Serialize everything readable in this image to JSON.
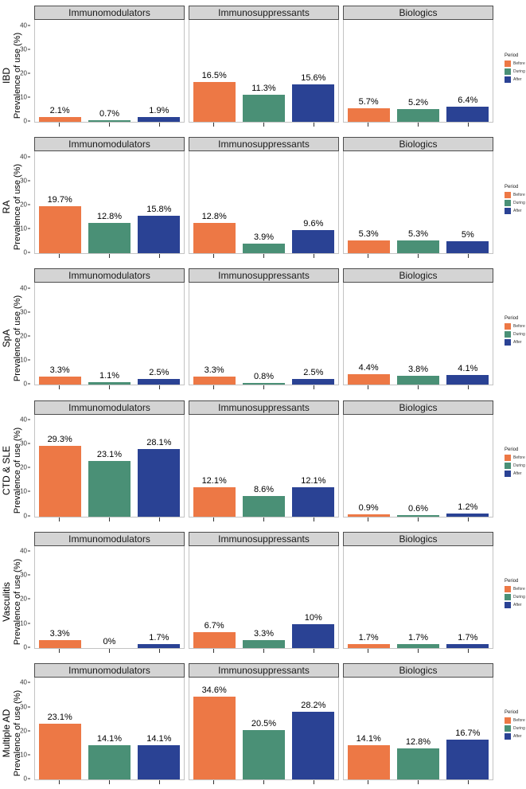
{
  "chart_data": {
    "type": "bar",
    "facet_columns": [
      "Immunomodulators",
      "Immunosuppressants",
      "Biologics"
    ],
    "ylabel": "Prevalence of use (%)",
    "yticks": [
      0,
      10,
      20,
      30,
      40
    ],
    "ylim": [
      0,
      42.5
    ],
    "grid": false,
    "legend_position": "right",
    "legend": {
      "title": "Period",
      "entries": [
        {
          "label": "Before",
          "color": "#ED7845"
        },
        {
          "label": "During",
          "color": "#4A9076"
        },
        {
          "label": "After",
          "color": "#2A4294"
        }
      ]
    },
    "rows": [
      {
        "facet": "IBD",
        "panels": [
          {
            "column": "Immunomodulators",
            "bars": [
              {
                "period": "Before",
                "value": 2.1,
                "label": "2.1%"
              },
              {
                "period": "During",
                "value": 0.7,
                "label": "0.7%"
              },
              {
                "period": "After",
                "value": 1.9,
                "label": "1.9%"
              }
            ]
          },
          {
            "column": "Immunosuppressants",
            "bars": [
              {
                "period": "Before",
                "value": 16.5,
                "label": "16.5%"
              },
              {
                "period": "During",
                "value": 11.3,
                "label": "11.3%"
              },
              {
                "period": "After",
                "value": 15.6,
                "label": "15.6%"
              }
            ]
          },
          {
            "column": "Biologics",
            "bars": [
              {
                "period": "Before",
                "value": 5.7,
                "label": "5.7%"
              },
              {
                "period": "During",
                "value": 5.2,
                "label": "5.2%"
              },
              {
                "period": "After",
                "value": 6.4,
                "label": "6.4%"
              }
            ]
          }
        ]
      },
      {
        "facet": "RA",
        "panels": [
          {
            "column": "Immunomodulators",
            "bars": [
              {
                "period": "Before",
                "value": 19.7,
                "label": "19.7%"
              },
              {
                "period": "During",
                "value": 12.8,
                "label": "12.8%"
              },
              {
                "period": "After",
                "value": 15.8,
                "label": "15.8%"
              }
            ]
          },
          {
            "column": "Immunosuppressants",
            "bars": [
              {
                "period": "Before",
                "value": 12.8,
                "label": "12.8%"
              },
              {
                "period": "During",
                "value": 3.9,
                "label": "3.9%"
              },
              {
                "period": "After",
                "value": 9.6,
                "label": "9.6%"
              }
            ]
          },
          {
            "column": "Biologics",
            "bars": [
              {
                "period": "Before",
                "value": 5.3,
                "label": "5.3%"
              },
              {
                "period": "During",
                "value": 5.3,
                "label": "5.3%"
              },
              {
                "period": "After",
                "value": 5,
                "label": "5%"
              }
            ]
          }
        ]
      },
      {
        "facet": "SpA",
        "panels": [
          {
            "column": "Immunomodulators",
            "bars": [
              {
                "period": "Before",
                "value": 3.3,
                "label": "3.3%"
              },
              {
                "period": "During",
                "value": 1.1,
                "label": "1.1%"
              },
              {
                "period": "After",
                "value": 2.5,
                "label": "2.5%"
              }
            ]
          },
          {
            "column": "Immunosuppressants",
            "bars": [
              {
                "period": "Before",
                "value": 3.3,
                "label": "3.3%"
              },
              {
                "period": "During",
                "value": 0.8,
                "label": "0.8%"
              },
              {
                "period": "After",
                "value": 2.5,
                "label": "2.5%"
              }
            ]
          },
          {
            "column": "Biologics",
            "bars": [
              {
                "period": "Before",
                "value": 4.4,
                "label": "4.4%"
              },
              {
                "period": "During",
                "value": 3.8,
                "label": "3.8%"
              },
              {
                "period": "After",
                "value": 4.1,
                "label": "4.1%"
              }
            ]
          }
        ]
      },
      {
        "facet": "CTD & SLE",
        "panels": [
          {
            "column": "Immunomodulators",
            "bars": [
              {
                "period": "Before",
                "value": 29.3,
                "label": "29.3%"
              },
              {
                "period": "During",
                "value": 23.1,
                "label": "23.1%"
              },
              {
                "period": "After",
                "value": 28.1,
                "label": "28.1%"
              }
            ]
          },
          {
            "column": "Immunosuppressants",
            "bars": [
              {
                "period": "Before",
                "value": 12.1,
                "label": "12.1%"
              },
              {
                "period": "During",
                "value": 8.6,
                "label": "8.6%"
              },
              {
                "period": "After",
                "value": 12.1,
                "label": "12.1%"
              }
            ]
          },
          {
            "column": "Biologics",
            "bars": [
              {
                "period": "Before",
                "value": 0.9,
                "label": "0.9%"
              },
              {
                "period": "During",
                "value": 0.6,
                "label": "0.6%"
              },
              {
                "period": "After",
                "value": 1.2,
                "label": "1.2%"
              }
            ]
          }
        ]
      },
      {
        "facet": "Vasculitis",
        "panels": [
          {
            "column": "Immunomodulators",
            "bars": [
              {
                "period": "Before",
                "value": 3.3,
                "label": "3.3%"
              },
              {
                "period": "During",
                "value": 0,
                "label": "0%"
              },
              {
                "period": "After",
                "value": 1.7,
                "label": "1.7%"
              }
            ]
          },
          {
            "column": "Immunosuppressants",
            "bars": [
              {
                "period": "Before",
                "value": 6.7,
                "label": "6.7%"
              },
              {
                "period": "During",
                "value": 3.3,
                "label": "3.3%"
              },
              {
                "period": "After",
                "value": 10,
                "label": "10%"
              }
            ]
          },
          {
            "column": "Biologics",
            "bars": [
              {
                "period": "Before",
                "value": 1.7,
                "label": "1.7%"
              },
              {
                "period": "During",
                "value": 1.7,
                "label": "1.7%"
              },
              {
                "period": "After",
                "value": 1.7,
                "label": "1.7%"
              }
            ]
          }
        ]
      },
      {
        "facet": "Multiple AD",
        "panels": [
          {
            "column": "Immunomodulators",
            "bars": [
              {
                "period": "Before",
                "value": 23.1,
                "label": "23.1%"
              },
              {
                "period": "During",
                "value": 14.1,
                "label": "14.1%"
              },
              {
                "period": "After",
                "value": 14.1,
                "label": "14.1%"
              }
            ]
          },
          {
            "column": "Immunosuppressants",
            "bars": [
              {
                "period": "Before",
                "value": 34.6,
                "label": "34.6%"
              },
              {
                "period": "During",
                "value": 20.5,
                "label": "20.5%"
              },
              {
                "period": "After",
                "value": 28.2,
                "label": "28.2%"
              }
            ]
          },
          {
            "column": "Biologics",
            "bars": [
              {
                "period": "Before",
                "value": 14.1,
                "label": "14.1%"
              },
              {
                "period": "During",
                "value": 12.8,
                "label": "12.8%"
              },
              {
                "period": "After",
                "value": 16.7,
                "label": "16.7%"
              }
            ]
          }
        ]
      }
    ]
  },
  "colors": {
    "before": "#ED7845",
    "during": "#4A9076",
    "after": "#2A4294",
    "strip_background": "#D4D4D4",
    "strip_border": "#4D4D4D",
    "panel_border": "#C3C3C3",
    "axis": "#333333"
  }
}
